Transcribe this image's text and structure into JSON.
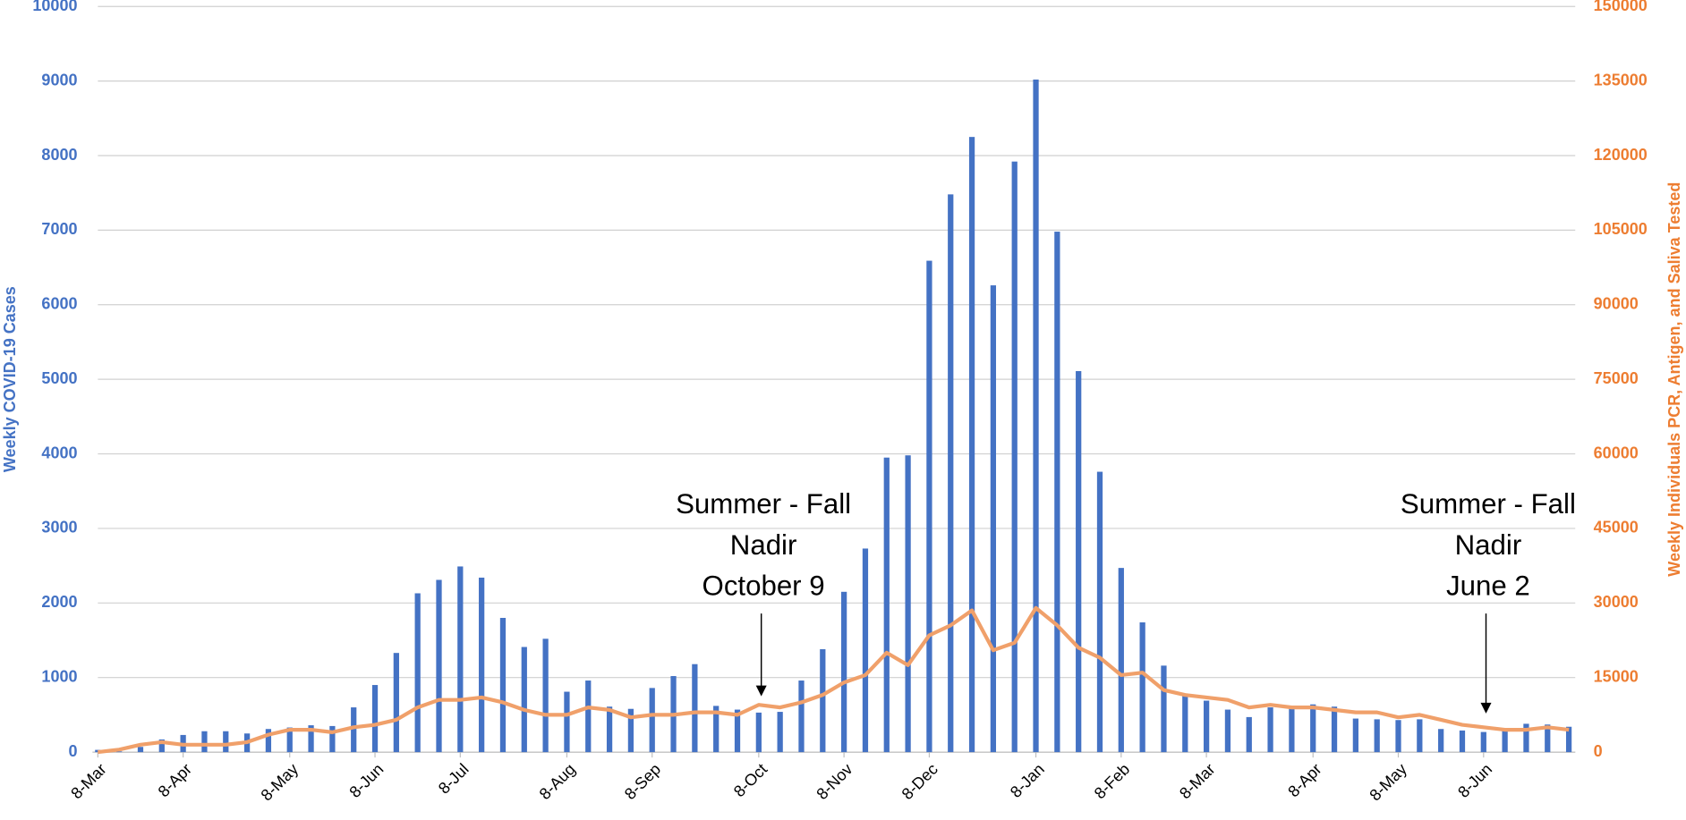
{
  "chart_data": {
    "type": "bar_line",
    "y_label": "Weekly COVID-19 Cases",
    "y2_label": "Weekly Individuals PCR, Antigen, and Saliva Tested",
    "categories": [
      "8-Mar",
      null,
      null,
      null,
      "8-Apr",
      null,
      null,
      null,
      null,
      "8-May",
      null,
      null,
      null,
      "8-Jun",
      null,
      null,
      null,
      "8-Jul",
      null,
      null,
      null,
      null,
      "8-Aug",
      null,
      null,
      null,
      "8-Sep",
      null,
      null,
      null,
      null,
      "8-Oct",
      null,
      null,
      null,
      "8-Nov",
      null,
      null,
      null,
      "8-Dec",
      null,
      null,
      null,
      null,
      "8-Jan",
      null,
      null,
      null,
      "8-Feb",
      null,
      null,
      null,
      "8-Mar",
      null,
      null,
      null,
      null,
      "8-Apr",
      null,
      null,
      null,
      "8-May",
      null,
      null,
      null,
      "8-Jun",
      null,
      null,
      null,
      null
    ],
    "series": [
      {
        "type": "bar",
        "color": "#4472c4",
        "values": [
          30,
          10,
          70,
          170,
          230,
          280,
          280,
          250,
          310,
          330,
          360,
          350,
          600,
          900,
          1330,
          2130,
          2310,
          2490,
          2340,
          1800,
          1410,
          1520,
          810,
          960,
          610,
          580,
          860,
          1020,
          1180,
          620,
          570,
          530,
          540,
          960,
          1380,
          2150,
          2730,
          3950,
          3980,
          6590,
          7480,
          8250,
          6260,
          7920,
          9020,
          6980,
          5110,
          3760,
          2470,
          1740,
          1160,
          780,
          690,
          570,
          470,
          600,
          610,
          640,
          610,
          450,
          440,
          430,
          440,
          310,
          290,
          270,
          310,
          380,
          370,
          340
        ]
      },
      {
        "type": "line",
        "axis": "y2",
        "color": "#f0a06a",
        "values": [
          0,
          500,
          1500,
          2000,
          1500,
          1500,
          1500,
          2000,
          3500,
          4500,
          4500,
          4000,
          5000,
          5500,
          6500,
          9000,
          10500,
          10500,
          11000,
          10000,
          8500,
          7500,
          7500,
          9000,
          8500,
          7000,
          7500,
          7500,
          8000,
          8000,
          7500,
          9500,
          9000,
          10000,
          11500,
          14000,
          15500,
          20000,
          17500,
          23500,
          25500,
          28500,
          20500,
          22000,
          29000,
          25500,
          21000,
          19000,
          15500,
          16000,
          12500,
          11500,
          11000,
          10500,
          9000,
          9500,
          9000,
          9000,
          8500,
          8000,
          8000,
          7000,
          7500,
          6500,
          5500,
          5000,
          4500,
          4500,
          5000,
          4500
        ]
      }
    ],
    "ylim": [
      0,
      10000
    ],
    "yticks": [
      0,
      1000,
      2000,
      3000,
      4000,
      5000,
      6000,
      7000,
      8000,
      9000,
      10000
    ],
    "y2lim": [
      0,
      150000
    ],
    "y2ticks": [
      0,
      15000,
      30000,
      45000,
      60000,
      75000,
      90000,
      105000,
      120000,
      135000,
      150000
    ],
    "grid": true,
    "y_color": "#4472c4",
    "y2_color": "#ed7d31",
    "annotations": [
      {
        "lines": [
          "Summer - Fall",
          "Nadir",
          "October 9"
        ]
      },
      {
        "lines": [
          "Summer - Fall",
          "Nadir",
          "June 2"
        ]
      }
    ]
  }
}
